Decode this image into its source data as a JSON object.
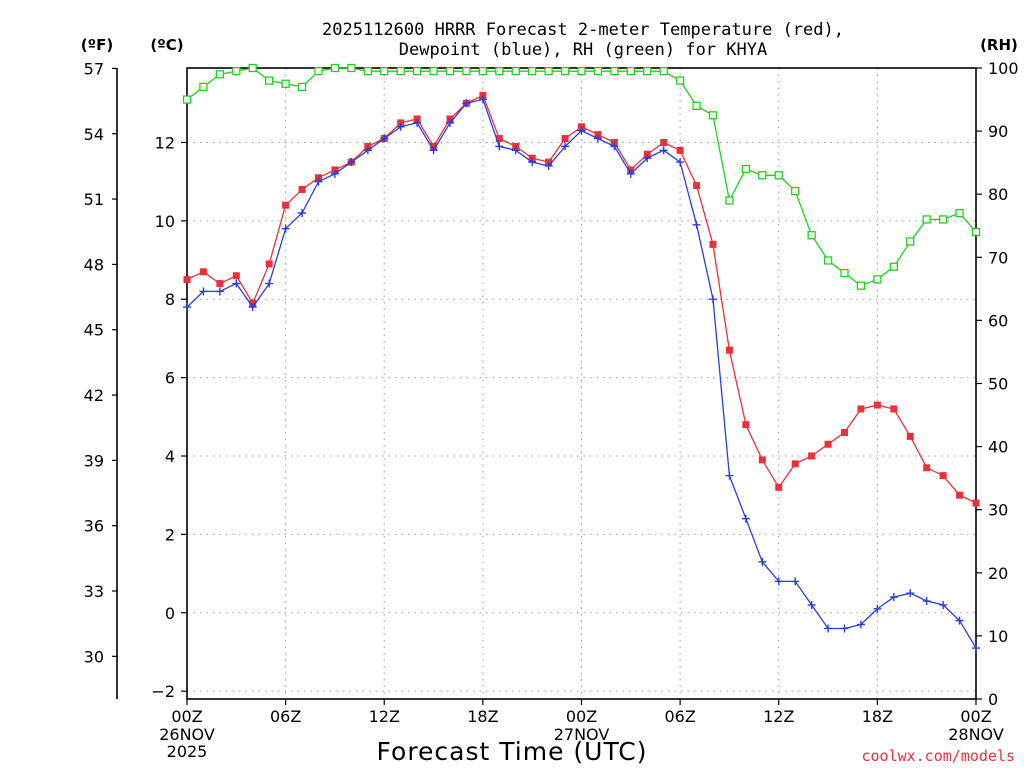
{
  "chart_data": {
    "type": "line",
    "title_line1": "2025112600 HRRR Forecast 2-meter Temperature (red),",
    "title_line2": "Dewpoint (blue), RH (green) for KHYA",
    "xlabel": "Forecast Time (UTC)",
    "credit": "coolwx.com/models",
    "colors": {
      "temperature": "#e8313b",
      "dewpoint": "#2a3fd6",
      "rh": "#1fd11f",
      "grid": "#9a9a9a",
      "credit": "#e8313b"
    },
    "axes": {
      "left_f": {
        "unit": "(ºF)",
        "ticks": [
          "57",
          "54",
          "51",
          "48",
          "45",
          "42",
          "39",
          "36",
          "33",
          "30"
        ],
        "values": [
          57,
          54,
          51,
          48,
          45,
          42,
          39,
          36,
          33,
          30
        ]
      },
      "left_c": {
        "unit": "(ºC)",
        "ticks": [
          "12",
          "10",
          "8",
          "6",
          "4",
          "2",
          "0",
          "−2"
        ],
        "values": [
          12,
          10,
          8,
          6,
          4,
          2,
          0,
          -2
        ]
      },
      "right_rh": {
        "unit": "(RH)",
        "ticks": [
          "100",
          "90",
          "80",
          "70",
          "60",
          "50",
          "40",
          "30",
          "20",
          "10",
          "0"
        ],
        "values": [
          100,
          90,
          80,
          70,
          60,
          50,
          40,
          30,
          20,
          10,
          0
        ]
      },
      "ylim_c": [
        -2.2,
        13.9
      ],
      "rh_lim": [
        0,
        100
      ],
      "x_range_hours": [
        0,
        48
      ]
    },
    "x_ticks": [
      {
        "hour": 0,
        "label": "00Z"
      },
      {
        "hour": 6,
        "label": "06Z"
      },
      {
        "hour": 12,
        "label": "12Z"
      },
      {
        "hour": 18,
        "label": "18Z"
      },
      {
        "hour": 24,
        "label": "00Z"
      },
      {
        "hour": 30,
        "label": "06Z"
      },
      {
        "hour": 36,
        "label": "12Z"
      },
      {
        "hour": 42,
        "label": "18Z"
      },
      {
        "hour": 48,
        "label": "00Z"
      }
    ],
    "date_labels": [
      {
        "hour": 0,
        "line1": "26NOV",
        "line2": "2025"
      },
      {
        "hour": 24,
        "line1": "27NOV",
        "line2": ""
      },
      {
        "hour": 48,
        "line1": "28NOV",
        "line2": ""
      }
    ],
    "series": [
      {
        "key": "temperature",
        "unit": "C",
        "values": [
          8.5,
          8.7,
          8.4,
          8.6,
          7.9,
          8.9,
          10.4,
          10.8,
          11.1,
          11.3,
          11.5,
          11.9,
          12.1,
          12.5,
          12.6,
          11.9,
          12.6,
          13.0,
          13.2,
          12.1,
          11.9,
          11.6,
          11.5,
          12.1,
          12.4,
          12.2,
          12.0,
          11.3,
          11.7,
          12.0,
          11.8,
          10.9,
          9.4,
          6.7,
          4.8,
          3.9,
          3.2,
          3.8,
          4.0,
          4.3,
          4.6,
          5.2,
          5.3,
          5.2,
          4.5,
          3.7,
          3.5,
          3.0,
          2.8
        ]
      },
      {
        "key": "dewpoint",
        "unit": "C",
        "values": [
          7.8,
          8.2,
          8.2,
          8.4,
          7.8,
          8.4,
          9.8,
          10.2,
          11.0,
          11.2,
          11.5,
          11.8,
          12.1,
          12.4,
          12.5,
          11.8,
          12.5,
          13.0,
          13.1,
          11.9,
          11.8,
          11.5,
          11.4,
          11.9,
          12.3,
          12.1,
          11.9,
          11.2,
          11.6,
          11.8,
          11.5,
          9.9,
          8.0,
          3.5,
          2.4,
          1.3,
          0.8,
          0.8,
          0.2,
          -0.4,
          -0.4,
          -0.3,
          0.1,
          0.4,
          0.5,
          0.3,
          0.2,
          -0.2,
          -0.9
        ]
      },
      {
        "key": "rh",
        "unit": "%",
        "values": [
          95,
          97,
          99,
          99.5,
          100,
          98,
          97.5,
          97,
          99.5,
          100,
          100,
          99.5,
          99.5,
          99.5,
          99.5,
          99.5,
          99.5,
          99.5,
          99.5,
          99.5,
          99.5,
          99.5,
          99.5,
          99.5,
          99.5,
          99.5,
          99.5,
          99.5,
          99.5,
          99.5,
          98,
          94,
          92.5,
          79,
          84,
          83,
          83,
          80.5,
          73.5,
          69.5,
          67.5,
          65.5,
          66.5,
          68.5,
          72.5,
          76,
          76,
          77,
          74
        ]
      }
    ]
  }
}
